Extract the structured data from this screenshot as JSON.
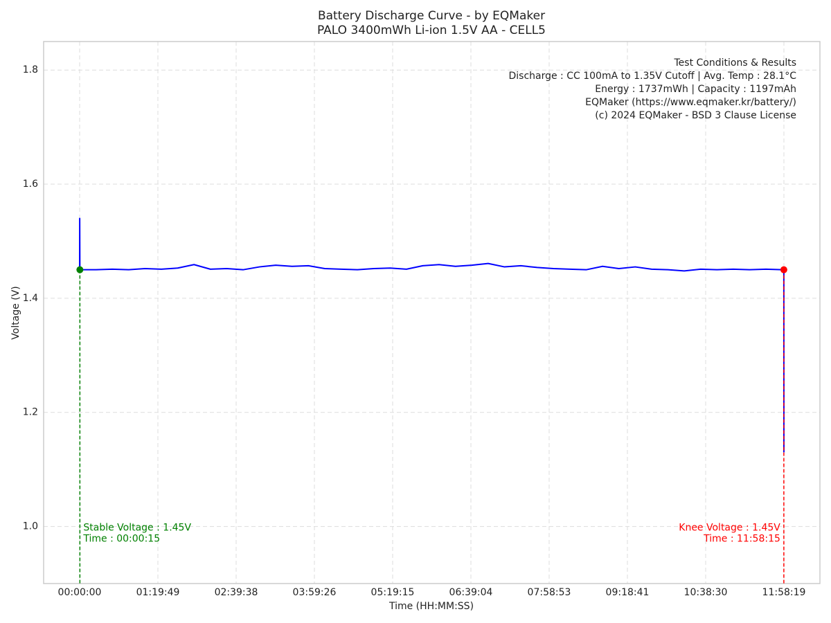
{
  "chart_data": {
    "type": "line",
    "title": "Battery Discharge Curve - by EQMaker",
    "subtitle": "PALO 3400mWh Li-ion 1.5V AA - CELL5",
    "xlabel": "Time (HH:MM:SS)",
    "ylabel": "Voltage (V)",
    "x": [
      0,
      5,
      15,
      1000,
      2000,
      3000,
      4000,
      5000,
      6000,
      7000,
      8000,
      9000,
      10000,
      11000,
      12000,
      13000,
      14000,
      15000,
      16000,
      17000,
      18000,
      19000,
      20000,
      21000,
      22000,
      23000,
      24000,
      25000,
      26000,
      27000,
      28000,
      29000,
      30000,
      31000,
      32000,
      33000,
      34000,
      35000,
      36000,
      37000,
      38000,
      39000,
      40000,
      41000,
      42000,
      43000,
      43095,
      43099
    ],
    "series": [
      {
        "color": "#0000ff",
        "values": [
          1.45,
          1.54,
          1.45,
          1.45,
          1.451,
          1.45,
          1.452,
          1.451,
          1.453,
          1.459,
          1.451,
          1.452,
          1.45,
          1.455,
          1.458,
          1.456,
          1.457,
          1.452,
          1.451,
          1.45,
          1.452,
          1.453,
          1.451,
          1.457,
          1.459,
          1.456,
          1.458,
          1.461,
          1.455,
          1.457,
          1.454,
          1.452,
          1.451,
          1.45,
          1.456,
          1.452,
          1.455,
          1.451,
          1.45,
          1.448,
          1.451,
          1.45,
          1.451,
          1.45,
          1.451,
          1.45,
          1.45,
          1.13
        ]
      }
    ],
    "xlim": [
      -2204,
      45303
    ],
    "ylim": [
      0.9,
      1.85
    ],
    "xticks": [
      {
        "value": 0,
        "label": "00:00:00"
      },
      {
        "value": 4789,
        "label": "01:19:49"
      },
      {
        "value": 9578,
        "label": "02:39:38"
      },
      {
        "value": 14366,
        "label": "03:59:26"
      },
      {
        "value": 19155,
        "label": "05:19:15"
      },
      {
        "value": 23944,
        "label": "06:39:04"
      },
      {
        "value": 28733,
        "label": "07:58:53"
      },
      {
        "value": 33521,
        "label": "09:18:41"
      },
      {
        "value": 38310,
        "label": "10:38:30"
      },
      {
        "value": 43099,
        "label": "11:58:19"
      }
    ],
    "yticks": [
      {
        "value": 1.0,
        "label": "1.0"
      },
      {
        "value": 1.2,
        "label": "1.2"
      },
      {
        "value": 1.4,
        "label": "1.4"
      },
      {
        "value": 1.6,
        "label": "1.6"
      },
      {
        "value": 1.8,
        "label": "1.8"
      }
    ],
    "grid": true,
    "markers": [
      {
        "x": 15,
        "y": 1.45,
        "color": "#008000",
        "align": "left",
        "label_lines": [
          "Stable Voltage : 1.45V",
          "Time : 00:00:15"
        ]
      },
      {
        "x": 43095,
        "y": 1.45,
        "color": "#ff0000",
        "align": "right",
        "label_lines": [
          "Knee Voltage : 1.45V",
          "Time : 11:58:15"
        ]
      }
    ],
    "info_lines": [
      "Test Conditions & Results",
      "Discharge : CC 100mA to 1.35V Cutoff | Avg. Temp : 28.1°C",
      "Energy : 1737mWh | Capacity : 1197mAh",
      "EQMaker (https://www.eqmaker.kr/battery/)",
      "(c) 2024 EQMaker - BSD 3 Clause License"
    ]
  }
}
